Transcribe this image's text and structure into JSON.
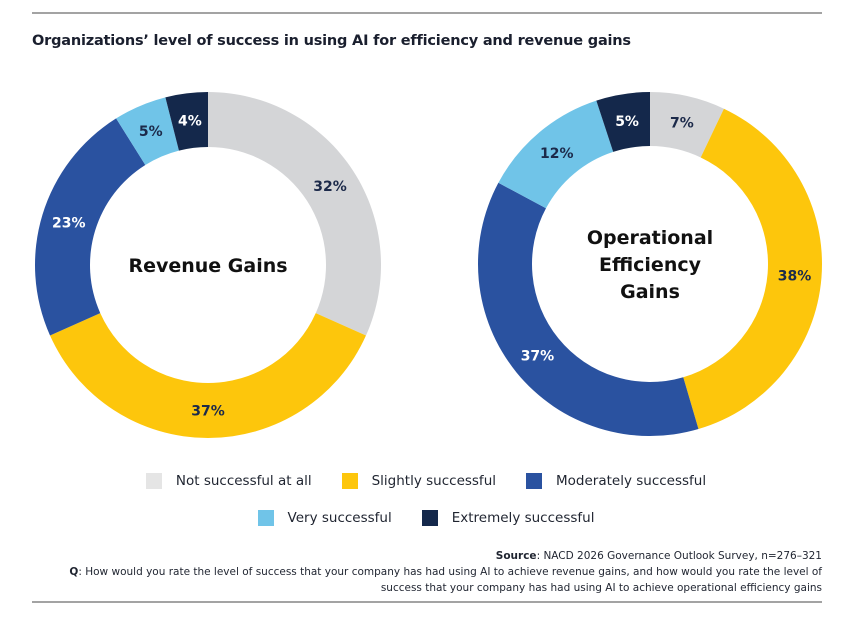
{
  "title": "Organizations’ level of success in using AI for efficiency and revenue gains",
  "categories": [
    "Not successful at all",
    "Slightly successful",
    "Moderately successful",
    "Very successful",
    "Extremely successful"
  ],
  "colors": {
    "Not successful at all": "#d4d5d7",
    "Slightly successful": "#fdc60c",
    "Moderately successful": "#2a52a0",
    "Very successful": "#70c4e8",
    "Extremely successful": "#14284b"
  },
  "legend_swatch_not_successful": "#e5e5e5",
  "chart_data": [
    {
      "type": "pie",
      "subtype": "donut",
      "title": "Revenue Gains",
      "categories": [
        "Not successful at all",
        "Slightly successful",
        "Moderately successful",
        "Very successful",
        "Extremely successful"
      ],
      "values": [
        32,
        37,
        23,
        5,
        4
      ],
      "labels": [
        "32%",
        "37%",
        "23%",
        "5%",
        "4%"
      ],
      "start": "12 o'clock",
      "direction": "clockwise"
    },
    {
      "type": "pie",
      "subtype": "donut",
      "title": "Operational Efficiency Gains",
      "title_lines": [
        "Operational",
        "Efficiency",
        "Gains"
      ],
      "categories": [
        "Not successful at all",
        "Slightly successful",
        "Moderately successful",
        "Very successful",
        "Extremely successful"
      ],
      "values": [
        7,
        38,
        37,
        12,
        5
      ],
      "labels": [
        "7%",
        "38%",
        "37%",
        "12%",
        "5%"
      ],
      "start": "12 o'clock",
      "direction": "clockwise"
    }
  ],
  "legend": {
    "placement": "bottom-center",
    "row1": [
      "Not successful at all",
      "Slightly successful",
      "Moderately successful"
    ],
    "row2": [
      "Very successful",
      "Extremely successful"
    ]
  },
  "footer": {
    "source_label": "Source",
    "source_text": ": NACD 2026 Governance Outlook Survey, n=276–321",
    "question_label": "Q",
    "question_text": ": How would you rate the level of success that your company has had using AI to achieve revenue gains, and how would you rate the level of success that your company has had using AI to achieve operational efficiency gains"
  }
}
